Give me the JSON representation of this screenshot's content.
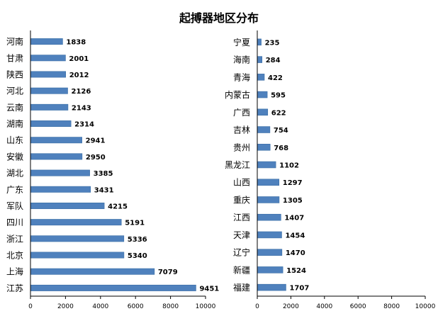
{
  "title": "起搏器地区分布",
  "colors": {
    "bar": "#4f81bd",
    "bar_edge": "#3a6ea5",
    "axis": "#000000",
    "text": "#000000"
  },
  "chart_data": [
    {
      "type": "bar",
      "orientation": "horizontal",
      "categories": [
        "河南",
        "甘肃",
        "陕西",
        "河北",
        "云南",
        "湖南",
        "山东",
        "安徽",
        "湖北",
        "广东",
        "军队",
        "四川",
        "浙江",
        "北京",
        "上海",
        "江苏"
      ],
      "values": [
        1838,
        2001,
        2012,
        2126,
        2143,
        2314,
        2941,
        2950,
        3385,
        3431,
        4215,
        5191,
        5336,
        5340,
        7079,
        9451
      ],
      "xlim": [
        0,
        10000
      ],
      "xticks": [
        0,
        2000,
        4000,
        6000,
        8000,
        10000
      ],
      "data_labels": true,
      "grid": false
    },
    {
      "type": "bar",
      "orientation": "horizontal",
      "categories": [
        "宁夏",
        "海南",
        "青海",
        "内蒙古",
        "广西",
        "吉林",
        "贵州",
        "黑龙江",
        "山西",
        "重庆",
        "江西",
        "天津",
        "辽宁",
        "新疆",
        "福建"
      ],
      "values": [
        235,
        284,
        422,
        595,
        622,
        754,
        768,
        1102,
        1297,
        1305,
        1407,
        1454,
        1470,
        1524,
        1707
      ],
      "xlim": [
        0,
        10000
      ],
      "xticks": [
        0,
        2000,
        4000,
        6000,
        8000,
        10000
      ],
      "data_labels": true,
      "grid": false
    }
  ]
}
